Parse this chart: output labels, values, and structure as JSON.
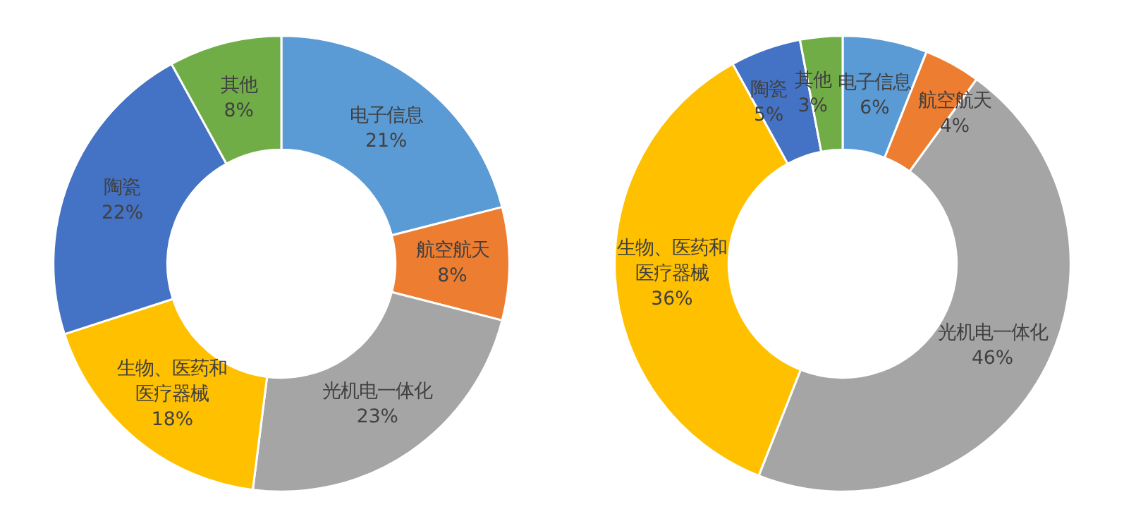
{
  "chart_data": [
    {
      "type": "donut",
      "categories": [
        "电子信息",
        "航空航天",
        "光机电一体化",
        "生物、医药和医疗器械",
        "陶瓷",
        "其他"
      ],
      "values": [
        21,
        8,
        23,
        18,
        22,
        8
      ],
      "value_labels": [
        "21%",
        "8%",
        "23%",
        "18%",
        "22%",
        "8%"
      ],
      "colors": [
        "#5b9bd5",
        "#ed7d31",
        "#a5a5a5",
        "#ffc000",
        "#4472c4",
        "#70ad47"
      ],
      "legend": false
    },
    {
      "type": "donut",
      "categories": [
        "电子信息",
        "航空航天",
        "光机电一体化",
        "生物、医药和医疗器械",
        "陶瓷",
        "其他"
      ],
      "values": [
        6,
        4,
        46,
        36,
        5,
        3
      ],
      "value_labels": [
        "6%",
        "4%",
        "46%",
        "36%",
        "5%",
        "3%"
      ],
      "colors": [
        "#5b9bd5",
        "#ed7d31",
        "#a5a5a5",
        "#ffc000",
        "#4472c4",
        "#70ad47"
      ],
      "legend": false
    }
  ]
}
